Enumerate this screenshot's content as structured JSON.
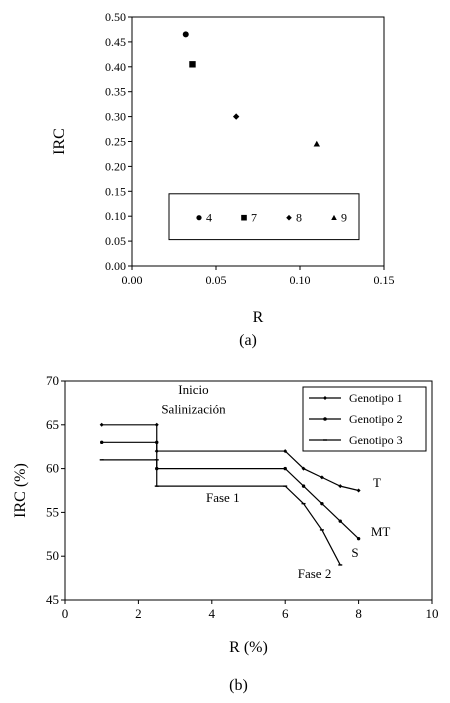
{
  "chart_data": [
    {
      "type": "scatter",
      "panel_label": "(a)",
      "xlabel": "R",
      "ylabel": "IRC",
      "xlim": [
        0,
        0.15
      ],
      "ylim": [
        0,
        0.5
      ],
      "x_ticks": [
        "0.00",
        "0.05",
        "0.10",
        "0.15"
      ],
      "y_ticks": [
        "0.00",
        "0.05",
        "0.10",
        "0.15",
        "0.20",
        "0.25",
        "0.30",
        "0.35",
        "0.40",
        "0.45",
        "0.50"
      ],
      "grid": false,
      "legend_position": "bottom",
      "series": [
        {
          "name": "4",
          "marker": "circle",
          "points": [
            {
              "x": 0.032,
              "y": 0.465
            }
          ]
        },
        {
          "name": "7",
          "marker": "square",
          "points": [
            {
              "x": 0.036,
              "y": 0.405
            }
          ]
        },
        {
          "name": "8",
          "marker": "diamond",
          "points": [
            {
              "x": 0.062,
              "y": 0.3
            }
          ]
        },
        {
          "name": "9",
          "marker": "triangle",
          "points": [
            {
              "x": 0.11,
              "y": 0.245
            }
          ]
        }
      ]
    },
    {
      "type": "line",
      "panel_label": "(b)",
      "xlabel": "R (%)",
      "ylabel": "IRC (%)",
      "xlim": [
        0,
        10
      ],
      "ylim": [
        45,
        70
      ],
      "x_ticks": [
        "0",
        "2",
        "4",
        "6",
        "8",
        "10"
      ],
      "y_ticks": [
        "45",
        "50",
        "55",
        "60",
        "65",
        "70"
      ],
      "grid": false,
      "legend_position": "top-right",
      "series": [
        {
          "name": "Genotipo 1",
          "marker": "diamond",
          "x": [
            1,
            2.5,
            2.5,
            6,
            6.5,
            7,
            7.5,
            8
          ],
          "y": [
            65,
            65,
            62,
            62,
            60,
            59,
            58,
            57.5
          ]
        },
        {
          "name": "Genotipo 2",
          "marker": "circle",
          "x": [
            1,
            2.5,
            2.5,
            6,
            6.5,
            7,
            7.5,
            8
          ],
          "y": [
            63,
            63,
            60,
            60,
            58,
            56,
            54,
            52
          ]
        },
        {
          "name": "Genotipo 3",
          "marker": "dash",
          "x": [
            1,
            2.5,
            2.5,
            6,
            6.5,
            7,
            7.5
          ],
          "y": [
            61,
            61,
            58,
            58,
            56,
            53,
            49
          ]
        }
      ],
      "annotations": [
        {
          "text": "Inicio",
          "x": 3.5,
          "y": 68.5
        },
        {
          "text": "Salinización",
          "x": 3.5,
          "y": 66.3
        },
        {
          "text": "Fase 1",
          "x": 4.3,
          "y": 56.2
        },
        {
          "text": "Fase 2",
          "x": 6.8,
          "y": 47.5
        },
        {
          "text": "T",
          "x": 8.5,
          "y": 57.9
        },
        {
          "text": "MT",
          "x": 8.6,
          "y": 52.3
        },
        {
          "text": "S",
          "x": 7.9,
          "y": 49.9
        }
      ]
    }
  ]
}
